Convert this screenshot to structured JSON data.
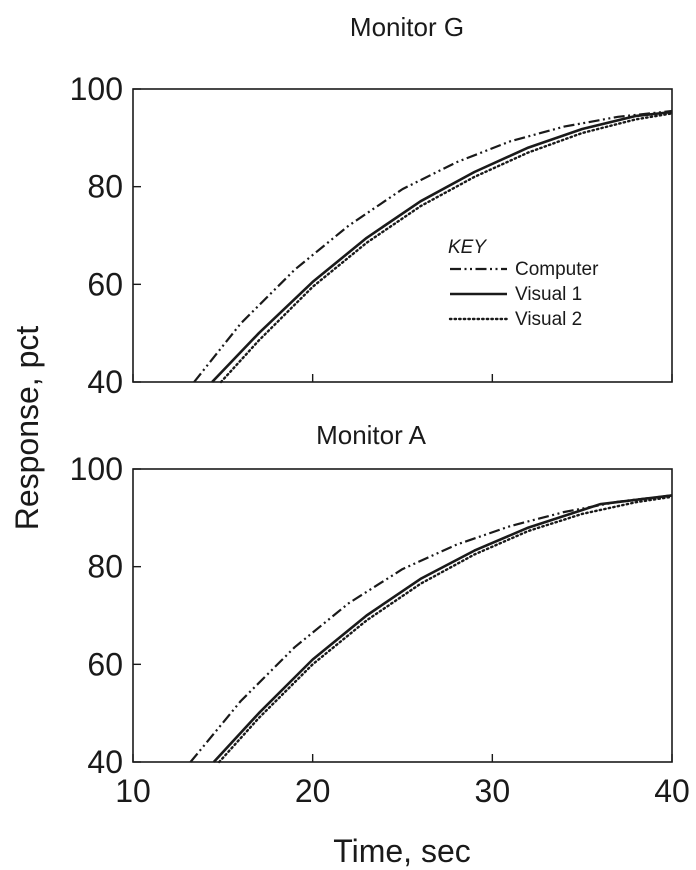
{
  "chart_data": [
    {
      "type": "line",
      "title": "Monitor G",
      "xlabel": "Time, sec",
      "ylabel": "Response, pct",
      "xlim": [
        10,
        40
      ],
      "ylim": [
        40,
        100
      ],
      "x_ticks": [
        "10",
        "20",
        "30",
        "40"
      ],
      "y_ticks": [
        "40",
        "60",
        "80",
        "100"
      ],
      "show_x_tick_labels": false,
      "grid": false,
      "legend": {
        "title": "KEY",
        "placement": "center-right",
        "entries": [
          "Computer",
          "Visual 1",
          "Visual 2"
        ]
      },
      "series": [
        {
          "name": "Computer",
          "style": "dashdotdot",
          "color": "#1a1a1a",
          "x": [
            13.4,
            16,
            19,
            22,
            25,
            28,
            31,
            34,
            37,
            40
          ],
          "y": [
            40,
            52,
            63,
            72,
            79.5,
            85,
            89.3,
            92.3,
            94.3,
            95.5
          ]
        },
        {
          "name": "Visual 1",
          "style": "solid",
          "color": "#1a1a1a",
          "x": [
            14.4,
            17,
            20,
            23,
            26,
            29,
            32,
            35,
            38,
            40
          ],
          "y": [
            40,
            50,
            60.5,
            69.5,
            77,
            83,
            88,
            91.8,
            94.5,
            95.3
          ]
        },
        {
          "name": "Visual 2",
          "style": "dotted",
          "color": "#1a1a1a",
          "x": [
            14.9,
            17,
            20,
            23,
            26,
            29,
            32,
            35,
            38,
            40
          ],
          "y": [
            40,
            48.5,
            59.5,
            68.5,
            76,
            82,
            87,
            91,
            93.8,
            95
          ]
        }
      ]
    },
    {
      "type": "line",
      "title": "Monitor  A",
      "xlabel": "Time, sec",
      "ylabel": "Response, pct",
      "xlim": [
        10,
        40
      ],
      "ylim": [
        40,
        100
      ],
      "x_ticks": [
        "10",
        "20",
        "30",
        "40"
      ],
      "y_ticks": [
        "40",
        "60",
        "80",
        "100"
      ],
      "show_x_tick_labels": true,
      "grid": false,
      "series": [
        {
          "name": "Computer",
          "style": "dashdotdot",
          "color": "#1a1a1a",
          "x": [
            13.2,
            16,
            19,
            22,
            25,
            28,
            31,
            34,
            37,
            40
          ],
          "y": [
            40,
            52.5,
            63.5,
            72.5,
            79.5,
            84.5,
            88.3,
            91.2,
            93.3,
            94.6
          ]
        },
        {
          "name": "Visual 1",
          "style": "solid",
          "color": "#1a1a1a",
          "x": [
            14.5,
            17,
            20,
            23,
            26,
            29,
            32,
            36,
            40
          ],
          "y": [
            40,
            50,
            61,
            70,
            77.5,
            83.3,
            88,
            92.8,
            94.6
          ]
        },
        {
          "name": "Visual 2",
          "style": "dotted",
          "color": "#1a1a1a",
          "x": [
            14.8,
            17,
            20,
            23,
            26,
            29,
            32,
            35,
            38,
            40
          ],
          "y": [
            40,
            49,
            60,
            69,
            76.5,
            82.5,
            87.3,
            90.8,
            93.2,
            94.3
          ]
        }
      ]
    }
  ]
}
